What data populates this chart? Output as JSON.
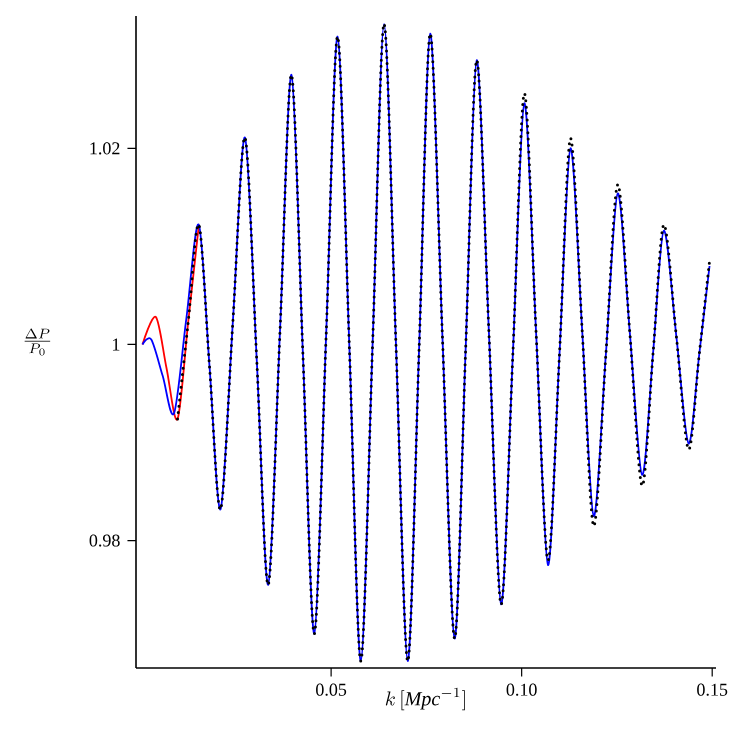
{
  "chart_data": {
    "type": "line",
    "xlabel": "k\\,[\\mathit{Mpc}^{-1}]",
    "ylabel": "\\frac{\\Delta P}{P_0}",
    "xlim": [
      -0.0012,
      0.151
    ],
    "ylim": [
      0.967,
      1.0335
    ],
    "xticks": [
      0.05,
      {
        "value": 0.1,
        "label": "0.10"
      },
      {
        "value": 0.15,
        "label": "0.15"
      }
    ],
    "yticks": [
      0.98,
      1,
      1.02
    ],
    "series": [
      {
        "color": "#ff0000",
        "line_style": "solid",
        "x": [
          0.0005,
          0.004,
          0.0068,
          0.0097,
          0.0125,
          0.0153
        ],
        "values": [
          1.0,
          1.0028,
          0.9976,
          0.9924,
          1.0023,
          1.0122
        ]
      },
      {
        "color": "#0000ff",
        "line_style": "solid",
        "x": [
          0.0005,
          0.0028,
          0.0058,
          0.0088,
          0.012,
          0.0153,
          0.0181,
          0.021,
          0.0242,
          0.0274,
          0.0305,
          0.0335,
          0.0366,
          0.0396,
          0.0426,
          0.0456,
          0.0487,
          0.0517,
          0.0548,
          0.0578,
          0.0609,
          0.0639,
          0.067,
          0.0701,
          0.0731,
          0.076,
          0.0792,
          0.0824,
          0.0853,
          0.0882,
          0.0914,
          0.0946,
          0.0977,
          0.1007,
          0.1038,
          0.1069,
          0.1099,
          0.1128,
          0.1159,
          0.1189,
          0.1221,
          0.1252,
          0.1284,
          0.1316,
          0.1345,
          0.1373,
          0.1406,
          0.1438,
          0.1466,
          0.1493
        ],
        "values": [
          1.0,
          1.0005,
          0.9968,
          0.993,
          1.0026,
          1.0122,
          0.9977,
          0.9832,
          1.0022,
          1.0211,
          0.9983,
          0.9755,
          1.0015,
          1.0275,
          0.999,
          0.9705,
          1.001,
          1.0314,
          0.9996,
          0.9677,
          1.0002,
          1.0327,
          1.0002,
          0.9677,
          0.9997,
          1.0317,
          1.0009,
          0.97,
          0.9995,
          1.029,
          1.0013,
          0.9735,
          0.9991,
          1.0246,
          1.0011,
          0.9775,
          0.9988,
          1.02,
          1.0013,
          0.9825,
          0.999,
          1.0154,
          1.0011,
          0.9867,
          0.9992,
          1.0116,
          1.0008,
          0.9899,
          0.999,
          1.008
        ]
      },
      {
        "color": "#000000",
        "line_style": "dotted",
        "x": [
          0.0097,
          0.0125,
          0.0153,
          0.0181,
          0.021,
          0.0242,
          0.0274,
          0.0305,
          0.0335,
          0.0366,
          0.0396,
          0.0426,
          0.0456,
          0.0487,
          0.0517,
          0.0548,
          0.0578,
          0.0609,
          0.0639,
          0.067,
          0.0701,
          0.0731,
          0.076,
          0.0792,
          0.0824,
          0.0853,
          0.0882,
          0.0914,
          0.0946,
          0.0977,
          0.1007,
          0.1038,
          0.1069,
          0.1099,
          0.1128,
          0.1159,
          0.1189,
          0.1221,
          0.1252,
          0.1284,
          0.1316,
          0.1345,
          0.1373,
          0.1406,
          0.1438,
          0.1466,
          0.1493
        ],
        "values": [
          0.9924,
          1.0023,
          1.0122,
          0.9977,
          0.9832,
          1.0022,
          1.0211,
          0.9983,
          0.9755,
          1.0015,
          1.0275,
          0.999,
          0.9705,
          1.001,
          1.0314,
          0.9996,
          0.9677,
          1.0002,
          1.0327,
          1.0002,
          0.9677,
          0.9997,
          1.0317,
          1.0009,
          0.97,
          0.9995,
          1.029,
          1.0013,
          0.9735,
          0.9991,
          1.0256,
          1.0011,
          0.978,
          0.9988,
          1.021,
          1.0013,
          0.9815,
          0.999,
          1.0163,
          1.0011,
          0.9856,
          0.9992,
          1.0122,
          1.0008,
          0.9893,
          0.999,
          1.0085
        ]
      }
    ]
  }
}
